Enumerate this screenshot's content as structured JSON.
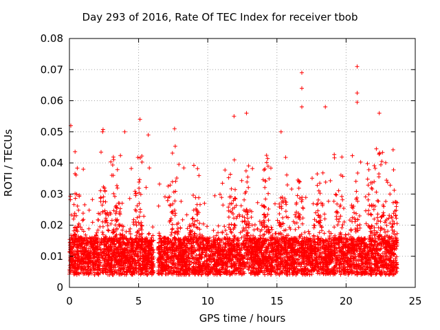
{
  "chart_data": {
    "type": "scatter",
    "title": "Day 293 of 2016, Rate Of TEC Index for receiver tbob",
    "xlabel": "GPS time / hours",
    "ylabel": "ROTI / TECUs",
    "xlim": [
      0,
      25
    ],
    "ylim": [
      0,
      0.08
    ],
    "xticks": [
      0,
      5,
      10,
      15,
      20,
      25
    ],
    "yticks": [
      0,
      0.01,
      0.02,
      0.03,
      0.04,
      0.05,
      0.06,
      0.07,
      0.08
    ],
    "grid": true,
    "marker": "+",
    "color": "#ff0000",
    "data_gap_hours": [
      6.1,
      6.4
    ],
    "approx_max_value": 0.071,
    "series": [
      {
        "name": "ROTI",
        "notable_points": [
          {
            "x": 0.1,
            "y": 0.052
          },
          {
            "x": 2.4,
            "y": 0.05
          },
          {
            "x": 4.0,
            "y": 0.05
          },
          {
            "x": 5.1,
            "y": 0.054
          },
          {
            "x": 5.7,
            "y": 0.049
          },
          {
            "x": 7.6,
            "y": 0.051
          },
          {
            "x": 11.9,
            "y": 0.055
          },
          {
            "x": 12.8,
            "y": 0.056
          },
          {
            "x": 15.3,
            "y": 0.05
          },
          {
            "x": 16.8,
            "y": 0.069
          },
          {
            "x": 16.8,
            "y": 0.064
          },
          {
            "x": 16.8,
            "y": 0.058
          },
          {
            "x": 18.5,
            "y": 0.058
          },
          {
            "x": 20.8,
            "y": 0.071
          },
          {
            "x": 20.8,
            "y": 0.0625
          },
          {
            "x": 20.8,
            "y": 0.0595
          },
          {
            "x": 22.4,
            "y": 0.056
          }
        ]
      }
    ]
  }
}
